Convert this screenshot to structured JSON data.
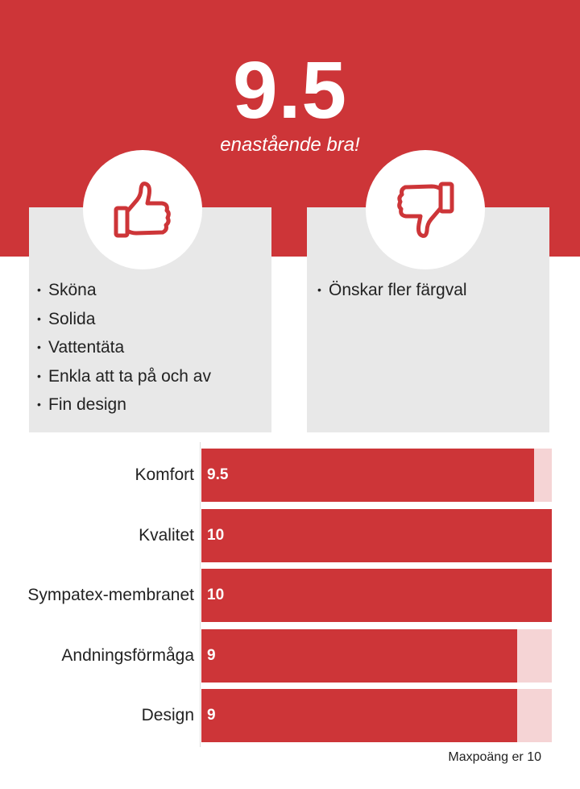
{
  "header": {
    "score": "9.5",
    "tagline": "enastående bra!"
  },
  "pros": {
    "icon": "thumbs-up-icon",
    "items": [
      "Sköna",
      "Solida",
      "Vattentäta",
      "Enkla att ta på och av",
      "Fin design"
    ]
  },
  "cons": {
    "icon": "thumbs-down-icon",
    "items": [
      "Önskar fler färgval"
    ]
  },
  "colors": {
    "accent": "#cd3538",
    "track": "#f5d4d5",
    "card": "#e8e8e8"
  },
  "chart_data": {
    "type": "bar",
    "orientation": "horizontal",
    "categories": [
      "Komfort",
      "Kvalitet",
      "Sympatex-membranet",
      "Andningsförmåga",
      "Design"
    ],
    "values": [
      9.5,
      10,
      10,
      9,
      9
    ],
    "value_labels": [
      "9.5",
      "10",
      "10",
      "9",
      "9"
    ],
    "xlim": [
      0,
      10
    ],
    "grid": false,
    "note": "Maxpoäng er 10"
  }
}
